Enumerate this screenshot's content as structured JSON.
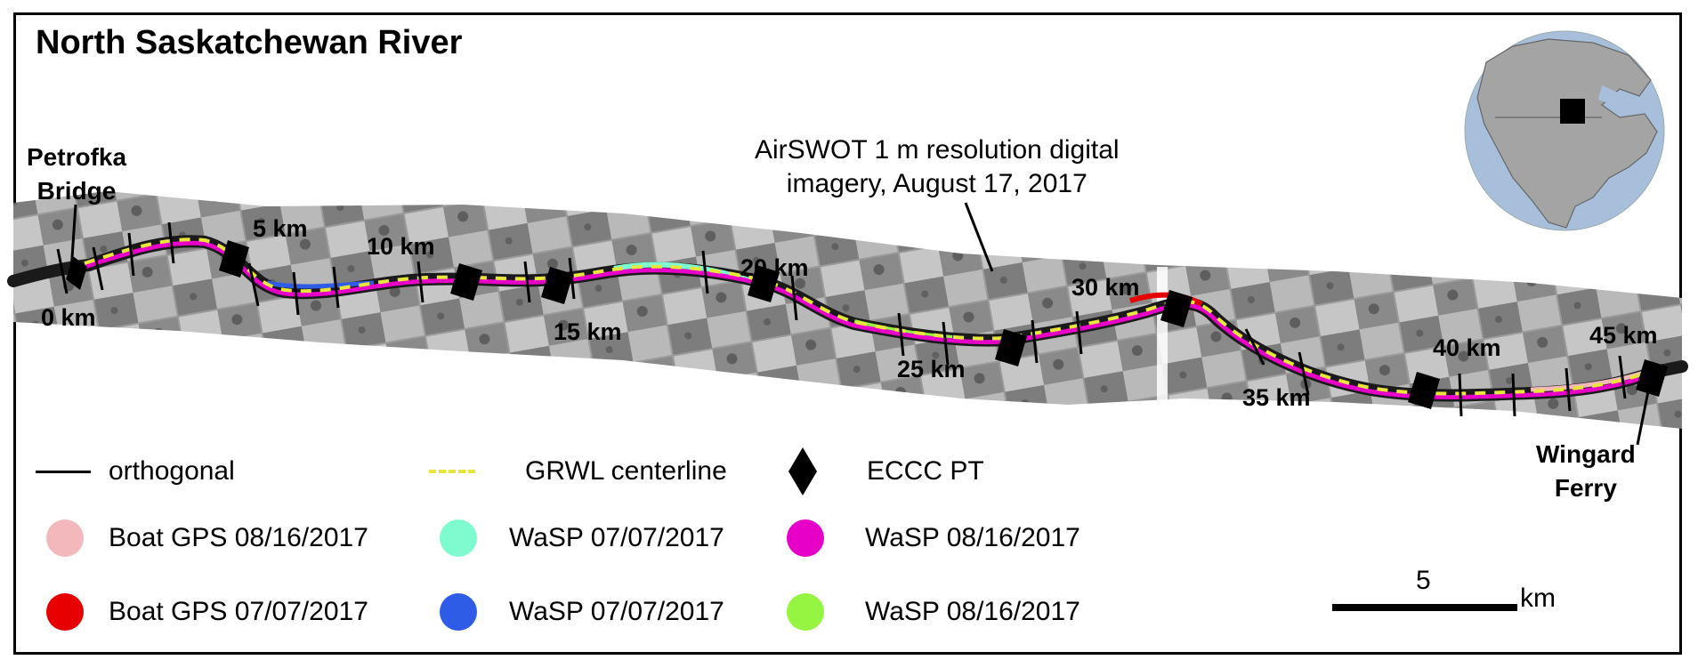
{
  "title": "North Saskatchewan River",
  "imagery_note": {
    "line1": "AirSWOT 1 m resolution digital",
    "line2": "imagery, August 17, 2017"
  },
  "places": {
    "start_line1": "Petrofka",
    "start_line2": "Bridge",
    "end_line1": "Wingard",
    "end_line2": "Ferry"
  },
  "km_markers": [
    "0 km",
    "5 km",
    "10 km",
    "15 km",
    "20 km",
    "25 km",
    "30 km",
    "35 km",
    "40 km",
    "45 km"
  ],
  "legend": [
    {
      "label": "orthogonal",
      "kind": "line",
      "color": "#000000",
      "icon": "line-icon"
    },
    {
      "label": "GRWL centerline",
      "kind": "dash",
      "color": "#e8e63a",
      "icon": "dashed-line-icon"
    },
    {
      "label": "ECCC PT",
      "kind": "diamond",
      "color": "#000000",
      "icon": "diamond-icon"
    },
    {
      "label": "Boat GPS 08/16/2017",
      "kind": "dot",
      "color": "#f2b8bb",
      "icon": "circle-icon"
    },
    {
      "label": "WaSP 07/07/2017",
      "kind": "dot",
      "color": "#7ffccf",
      "icon": "circle-icon"
    },
    {
      "label": "WaSP 08/16/2017",
      "kind": "dot",
      "color": "#e600c8",
      "icon": "circle-icon"
    },
    {
      "label": "Boat GPS 07/07/2017",
      "kind": "dot",
      "color": "#e60000",
      "icon": "circle-icon"
    },
    {
      "label": "WaSP 07/07/2017",
      "kind": "dot",
      "color": "#2e5ce6",
      "icon": "circle-icon"
    },
    {
      "label": "WaSP 08/16/2017",
      "kind": "dot",
      "color": "#96f540",
      "icon": "circle-icon"
    }
  ],
  "scale_bar": {
    "value": "5",
    "unit": "km"
  }
}
